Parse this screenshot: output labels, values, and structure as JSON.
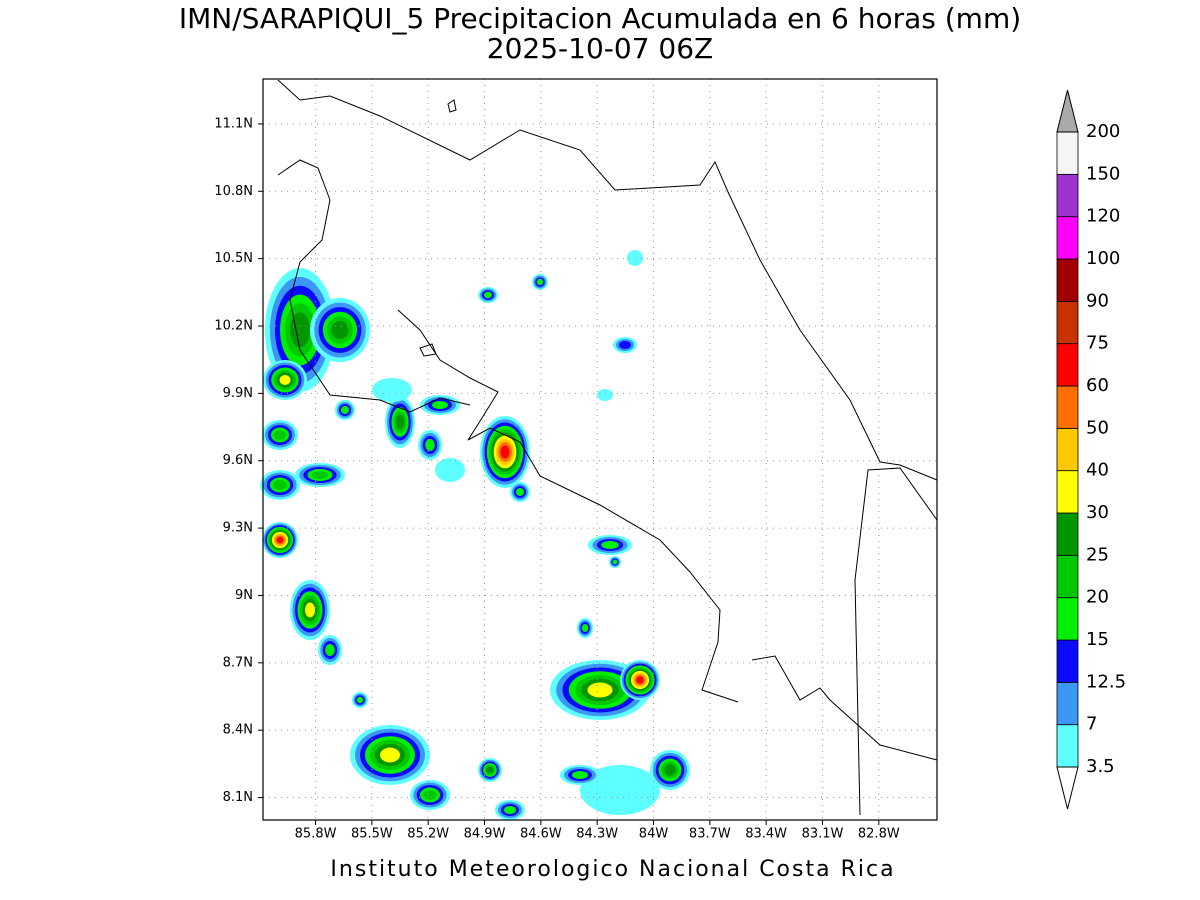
{
  "chart_data": {
    "type": "map",
    "title": "IMN/SARAPIQUI_5 Precipitacion Acumulada en 6 horas (mm)",
    "subtitle": "2025-10-07 06Z",
    "footer": "Instituto Meteorologico Nacional Costa Rica",
    "xlim": [
      -86.08,
      -82.49
    ],
    "ylim": [
      8.0,
      11.3
    ],
    "xticks": [
      {
        "value": -85.8,
        "label": "85.8W"
      },
      {
        "value": -85.5,
        "label": "85.5W"
      },
      {
        "value": -85.2,
        "label": "85.2W"
      },
      {
        "value": -84.9,
        "label": "84.9W"
      },
      {
        "value": -84.6,
        "label": "84.6W"
      },
      {
        "value": -84.3,
        "label": "84.3W"
      },
      {
        "value": -84.0,
        "label": "84W"
      },
      {
        "value": -83.7,
        "label": "83.7W"
      },
      {
        "value": -83.4,
        "label": "83.4W"
      },
      {
        "value": -83.1,
        "label": "83.1W"
      },
      {
        "value": -82.8,
        "label": "82.8W"
      }
    ],
    "yticks": [
      {
        "value": 8.1,
        "label": "8.1N"
      },
      {
        "value": 8.4,
        "label": "8.4N"
      },
      {
        "value": 8.7,
        "label": "8.7N"
      },
      {
        "value": 9.0,
        "label": "9N"
      },
      {
        "value": 9.3,
        "label": "9.3N"
      },
      {
        "value": 9.6,
        "label": "9.6N"
      },
      {
        "value": 9.9,
        "label": "9.9N"
      },
      {
        "value": 10.2,
        "label": "10.2N"
      },
      {
        "value": 10.5,
        "label": "10.5N"
      },
      {
        "value": 10.8,
        "label": "10.8N"
      },
      {
        "value": 11.1,
        "label": "11.1N"
      }
    ],
    "grid": true,
    "colorbar": {
      "levels": [
        3.5,
        7,
        12.5,
        15,
        20,
        25,
        30,
        40,
        50,
        60,
        75,
        90,
        100,
        120,
        150,
        200
      ],
      "colors": [
        "#5effff",
        "#3c96f5",
        "#0a0aff",
        "#00f000",
        "#00c800",
        "#009600",
        "#ffff00",
        "#ffc800",
        "#ff6e00",
        "#ff0000",
        "#c83200",
        "#a00000",
        "#ff00ff",
        "#a032d2",
        "#f5f5f5"
      ],
      "over_color": "#a9a9a9",
      "under_color": "#ffffff"
    }
  }
}
